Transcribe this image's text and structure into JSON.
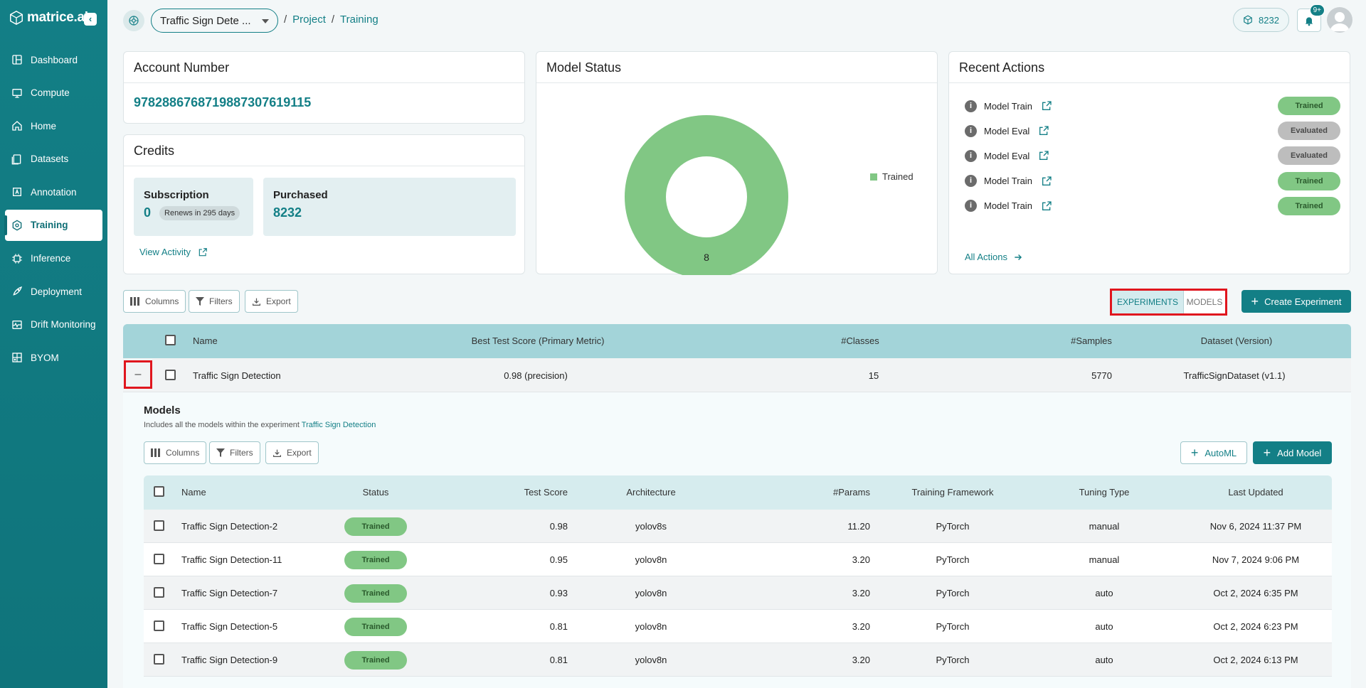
{
  "brand": {
    "name": "matrice.ai"
  },
  "sidebar": {
    "items": [
      {
        "label": "Dashboard",
        "icon": "dashboard-icon"
      },
      {
        "label": "Compute",
        "icon": "compute-icon"
      },
      {
        "label": "Home",
        "icon": "home-icon"
      },
      {
        "label": "Datasets",
        "icon": "datasets-icon"
      },
      {
        "label": "Annotation",
        "icon": "annotation-icon"
      },
      {
        "label": "Training",
        "icon": "training-icon",
        "active": true
      },
      {
        "label": "Inference",
        "icon": "inference-icon"
      },
      {
        "label": "Deployment",
        "icon": "rocket-icon"
      },
      {
        "label": "Drift Monitoring",
        "icon": "monitor-icon"
      },
      {
        "label": "BYOM",
        "icon": "byom-icon"
      }
    ]
  },
  "header": {
    "project": "Traffic Sign Dete ...",
    "breadcrumb": {
      "sep": "/",
      "project": "Project",
      "current": "Training"
    },
    "credits": "8232",
    "notif_badge": "9+"
  },
  "account": {
    "title": "Account Number",
    "number": "97828867687198873076191​15"
  },
  "credits": {
    "title": "Credits",
    "subscription_label": "Subscription",
    "subscription_value": "0",
    "renews": "Renews in 295 days",
    "purchased_label": "Purchased",
    "purchased_value": "8232",
    "view_activity": "View Activity"
  },
  "model_status": {
    "title": "Model Status",
    "legend": "Trained",
    "center_label": "8"
  },
  "chart_data": {
    "type": "pie",
    "title": "Model Status",
    "categories": [
      "Trained"
    ],
    "values": [
      8
    ],
    "colors": [
      "#81c784"
    ]
  },
  "recent": {
    "title": "Recent Actions",
    "items": [
      {
        "label": "Model Train",
        "status": "Trained"
      },
      {
        "label": "Model Eval",
        "status": "Evaluated"
      },
      {
        "label": "Model Eval",
        "status": "Evaluated"
      },
      {
        "label": "Model Train",
        "status": "Trained"
      },
      {
        "label": "Model Train",
        "status": "Trained"
      }
    ],
    "all_actions": "All Actions"
  },
  "toolbar": {
    "columns": "Columns",
    "filters": "Filters",
    "export": "Export",
    "experiments": "EXPERIMENTS",
    "models": "MODELS",
    "create": "Create Experiment"
  },
  "experiments_table": {
    "headers": {
      "name": "Name",
      "score": "Best Test Score (Primary Metric)",
      "classes": "#Classes",
      "samples": "#Samples",
      "dataset": "Dataset (Version)"
    },
    "row": {
      "collapse": "–",
      "name": "Traffic Sign Detection",
      "score": "0.98 (precision)",
      "classes": "15",
      "samples": "5770",
      "dataset": "TrafficSignDataset (v1.1)"
    }
  },
  "models": {
    "title": "Models",
    "subtitle": "Includes all the models within the experiment",
    "subtitle_link": "Traffic Sign Detection",
    "automl": "AutoML",
    "add_model": "Add Model",
    "headers": {
      "name": "Name",
      "status": "Status",
      "score": "Test Score",
      "arch": "Architecture",
      "params": "#Params",
      "framework": "Training Framework",
      "tuning": "Tuning Type",
      "updated": "Last Updated"
    },
    "rows": [
      {
        "name": "Traffic Sign Detection-2",
        "status": "Trained",
        "score": "0.98",
        "arch": "yolov8s",
        "params": "11.20",
        "framework": "PyTorch",
        "tuning": "manual",
        "updated": "Nov 6, 2024 11:37 PM"
      },
      {
        "name": "Traffic Sign Detection-11",
        "status": "Trained",
        "score": "0.95",
        "arch": "yolov8n",
        "params": "3.20",
        "framework": "PyTorch",
        "tuning": "manual",
        "updated": "Nov 7, 2024 9:06 PM"
      },
      {
        "name": "Traffic Sign Detection-7",
        "status": "Trained",
        "score": "0.93",
        "arch": "yolov8n",
        "params": "3.20",
        "framework": "PyTorch",
        "tuning": "auto",
        "updated": "Oct 2, 2024 6:35 PM"
      },
      {
        "name": "Traffic Sign Detection-5",
        "status": "Trained",
        "score": "0.81",
        "arch": "yolov8n",
        "params": "3.20",
        "framework": "PyTorch",
        "tuning": "auto",
        "updated": "Oct 2, 2024 6:23 PM"
      },
      {
        "name": "Traffic Sign Detection-9",
        "status": "Trained",
        "score": "0.81",
        "arch": "yolov8n",
        "params": "3.20",
        "framework": "PyTorch",
        "tuning": "auto",
        "updated": "Oct 2, 2024 6:13 PM"
      }
    ]
  }
}
